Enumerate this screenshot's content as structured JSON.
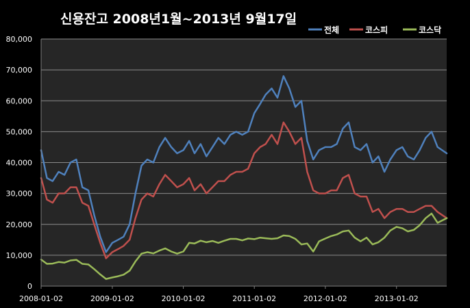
{
  "chart_data": {
    "type": "line",
    "title": "신용잔고 2008년1월~2013년 9월17일",
    "xlabel": "",
    "ylabel": "",
    "x_range": [
      "2008-01-02",
      "2013-09-17"
    ],
    "x_ticks": [
      "2008-01-02",
      "2009-01-02",
      "2010-01-02",
      "2011-01-02",
      "2012-01-02",
      "2013-01-02"
    ],
    "ylim": [
      0,
      80000
    ],
    "y_ticks": [
      0,
      10000,
      20000,
      30000,
      40000,
      50000,
      60000,
      70000,
      80000
    ],
    "y_tick_labels": [
      "0",
      "10,000",
      "20,000",
      "30,000",
      "40,000",
      "50,000",
      "60,000",
      "70,000",
      "80,000"
    ],
    "grid": true,
    "legend_position": "top-right",
    "x": [
      "2008-01-02",
      "2008-02-01",
      "2008-03-01",
      "2008-04-01",
      "2008-05-01",
      "2008-06-01",
      "2008-07-01",
      "2008-08-01",
      "2008-09-01",
      "2008-10-01",
      "2008-11-01",
      "2008-12-01",
      "2009-01-02",
      "2009-02-01",
      "2009-03-01",
      "2009-04-01",
      "2009-05-01",
      "2009-06-01",
      "2009-07-01",
      "2009-08-01",
      "2009-09-01",
      "2009-10-01",
      "2009-11-01",
      "2009-12-01",
      "2010-01-02",
      "2010-02-01",
      "2010-03-01",
      "2010-04-01",
      "2010-05-01",
      "2010-06-01",
      "2010-07-01",
      "2010-08-01",
      "2010-09-01",
      "2010-10-01",
      "2010-11-01",
      "2010-12-01",
      "2011-01-02",
      "2011-02-01",
      "2011-03-01",
      "2011-04-01",
      "2011-05-01",
      "2011-06-01",
      "2011-07-01",
      "2011-08-01",
      "2011-09-01",
      "2011-10-01",
      "2011-11-01",
      "2011-12-01",
      "2012-01-02",
      "2012-02-01",
      "2012-03-01",
      "2012-04-01",
      "2012-05-01",
      "2012-06-01",
      "2012-07-01",
      "2012-08-01",
      "2012-09-01",
      "2012-10-01",
      "2012-11-01",
      "2012-12-01",
      "2013-01-02",
      "2013-02-01",
      "2013-03-01",
      "2013-04-01",
      "2013-05-01",
      "2013-06-01",
      "2013-07-01",
      "2013-08-01",
      "2013-09-17"
    ],
    "series": [
      {
        "name": "전체",
        "color": "#4f81bd",
        "values": [
          44000,
          35000,
          34000,
          37000,
          36000,
          40000,
          41000,
          32000,
          31000,
          23000,
          16000,
          11000,
          14000,
          15000,
          16000,
          20000,
          30000,
          39000,
          41000,
          40000,
          45000,
          48000,
          45000,
          43000,
          44000,
          47000,
          43000,
          46000,
          42000,
          45000,
          48000,
          46000,
          49000,
          50000,
          49000,
          50000,
          56000,
          59000,
          62000,
          64000,
          61000,
          68000,
          64000,
          58000,
          60000,
          47000,
          41000,
          44000,
          45000,
          45000,
          46000,
          51000,
          53000,
          45000,
          44000,
          46000,
          40000,
          42000,
          37000,
          41000,
          44000,
          45000,
          42000,
          41000,
          44000,
          48000,
          50000,
          45000,
          43000
        ]
      },
      {
        "name": "코스피",
        "color": "#c0504d",
        "values": [
          35000,
          28000,
          27000,
          30000,
          30000,
          32000,
          32000,
          27000,
          26000,
          20000,
          14000,
          9000,
          11000,
          12000,
          13000,
          15000,
          22000,
          28000,
          30000,
          29000,
          33000,
          36000,
          34000,
          32000,
          33000,
          35000,
          31000,
          33000,
          30000,
          32000,
          34000,
          34000,
          36000,
          37000,
          37000,
          38000,
          43000,
          45000,
          46000,
          49000,
          46000,
          53000,
          50000,
          46000,
          48000,
          37000,
          31000,
          30000,
          30000,
          31000,
          31000,
          35000,
          36000,
          30000,
          29000,
          29000,
          24000,
          25000,
          22000,
          24000,
          25000,
          25000,
          24000,
          24000,
          25000,
          26000,
          26000,
          24000,
          22000
        ]
      },
      {
        "name": "코스닥",
        "color": "#9bbb59",
        "values": [
          8600,
          7200,
          7300,
          7800,
          7600,
          8300,
          8500,
          7200,
          7000,
          5500,
          3800,
          2300,
          2800,
          3200,
          3700,
          5000,
          8000,
          10500,
          11000,
          10600,
          11500,
          12200,
          11200,
          10500,
          11200,
          14000,
          13800,
          14700,
          14200,
          14600,
          14000,
          14700,
          15300,
          15300,
          14800,
          15400,
          15200,
          15700,
          15500,
          15300,
          15500,
          16400,
          16200,
          15300,
          13500,
          13800,
          11200,
          14500,
          15400,
          16200,
          16700,
          17700,
          18000,
          15700,
          14500,
          15700,
          13500,
          14200,
          15700,
          18000,
          19200,
          18700,
          17700,
          18200,
          19700,
          22000,
          23500,
          20500,
          22000
        ]
      }
    ]
  }
}
